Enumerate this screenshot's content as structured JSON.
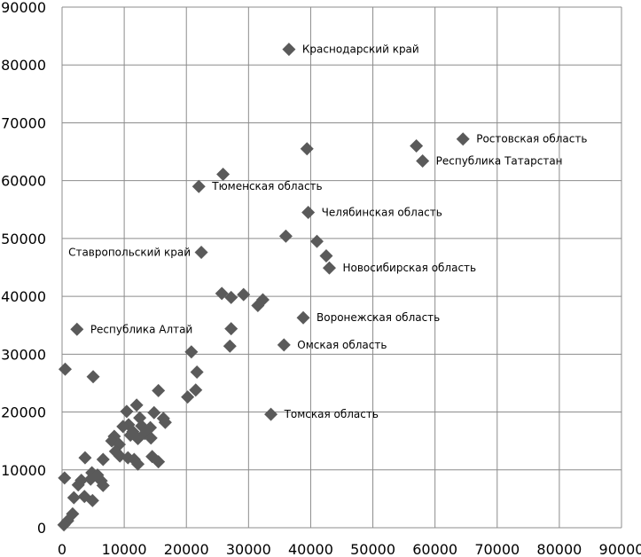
{
  "chart_data": {
    "type": "scatter",
    "title": "",
    "xlabel": "",
    "ylabel": "",
    "xlim": [
      0,
      90000
    ],
    "ylim": [
      0,
      90000
    ],
    "x_ticks": [
      0,
      10000,
      20000,
      30000,
      40000,
      50000,
      60000,
      70000,
      80000,
      90000
    ],
    "y_ticks": [
      0,
      10000,
      20000,
      30000,
      40000,
      50000,
      60000,
      70000,
      80000,
      90000
    ],
    "grid": {
      "horizontal": true,
      "vertical": true
    },
    "marker": {
      "shape": "diamond",
      "color": "#5a5a5a"
    },
    "labeled_points": [
      {
        "label": "Краснодарский край",
        "x": 36500,
        "y": 82700
      },
      {
        "label": "Ростовская область",
        "x": 64500,
        "y": 67200
      },
      {
        "label": "Республика Татарстан",
        "x": 58000,
        "y": 63400
      },
      {
        "label": "Тюменская область",
        "x": 22000,
        "y": 59000
      },
      {
        "label": "Челябинская область",
        "x": 39600,
        "y": 54500
      },
      {
        "label": "Ставропольский край",
        "x": 22400,
        "y": 47600
      },
      {
        "label": "Новосибирская область",
        "x": 43000,
        "y": 44900
      },
      {
        "label": "Воронежская область",
        "x": 38800,
        "y": 36300
      },
      {
        "label": "Республика Алтай",
        "x": 2400,
        "y": 34300
      },
      {
        "label": "Омская область",
        "x": 35700,
        "y": 31600
      },
      {
        "label": "Томская область",
        "x": 33600,
        "y": 19600
      }
    ],
    "points": [
      [
        36500,
        82700
      ],
      [
        64500,
        67200
      ],
      [
        58000,
        63400
      ],
      [
        57000,
        66000
      ],
      [
        39400,
        65500
      ],
      [
        25900,
        61100
      ],
      [
        22000,
        59000
      ],
      [
        39600,
        54500
      ],
      [
        36000,
        50400
      ],
      [
        41000,
        49500
      ],
      [
        42500,
        47000
      ],
      [
        43000,
        44900
      ],
      [
        22400,
        47600
      ],
      [
        25700,
        40500
      ],
      [
        27200,
        39800
      ],
      [
        29200,
        40300
      ],
      [
        31500,
        38400
      ],
      [
        32300,
        39400
      ],
      [
        38800,
        36300
      ],
      [
        27200,
        34400
      ],
      [
        27000,
        31400
      ],
      [
        35700,
        31600
      ],
      [
        2400,
        34300
      ],
      [
        20800,
        30400
      ],
      [
        21700,
        26900
      ],
      [
        500,
        27400
      ],
      [
        5000,
        26100
      ],
      [
        15500,
        23700
      ],
      [
        21500,
        23800
      ],
      [
        20200,
        22600
      ],
      [
        33600,
        19600
      ],
      [
        12000,
        21200
      ],
      [
        10400,
        20100
      ],
      [
        14800,
        19900
      ],
      [
        16300,
        18900
      ],
      [
        16600,
        18200
      ],
      [
        10700,
        17800
      ],
      [
        12800,
        17600
      ],
      [
        14200,
        17300
      ],
      [
        11400,
        16600
      ],
      [
        13300,
        16300
      ],
      [
        8400,
        15800
      ],
      [
        8000,
        15000
      ],
      [
        14300,
        15500
      ],
      [
        12200,
        15400
      ],
      [
        9200,
        14400
      ],
      [
        8600,
        13200
      ],
      [
        9300,
        12400
      ],
      [
        10600,
        12100
      ],
      [
        11600,
        11800
      ],
      [
        14500,
        12300
      ],
      [
        15500,
        11400
      ],
      [
        12200,
        11000
      ],
      [
        6600,
        11800
      ],
      [
        3700,
        12100
      ],
      [
        4800,
        9500
      ],
      [
        5700,
        9100
      ],
      [
        4600,
        8400
      ],
      [
        3100,
        8200
      ],
      [
        2600,
        7400
      ],
      [
        6300,
        8100
      ],
      [
        6600,
        7300
      ],
      [
        3600,
        5400
      ],
      [
        4900,
        4700
      ],
      [
        1900,
        5200
      ],
      [
        1700,
        2400
      ],
      [
        400,
        8600
      ],
      [
        900,
        1200
      ],
      [
        300,
        500
      ],
      [
        12500,
        19000
      ],
      [
        11000,
        16000
      ],
      [
        9800,
        17500
      ]
    ]
  }
}
